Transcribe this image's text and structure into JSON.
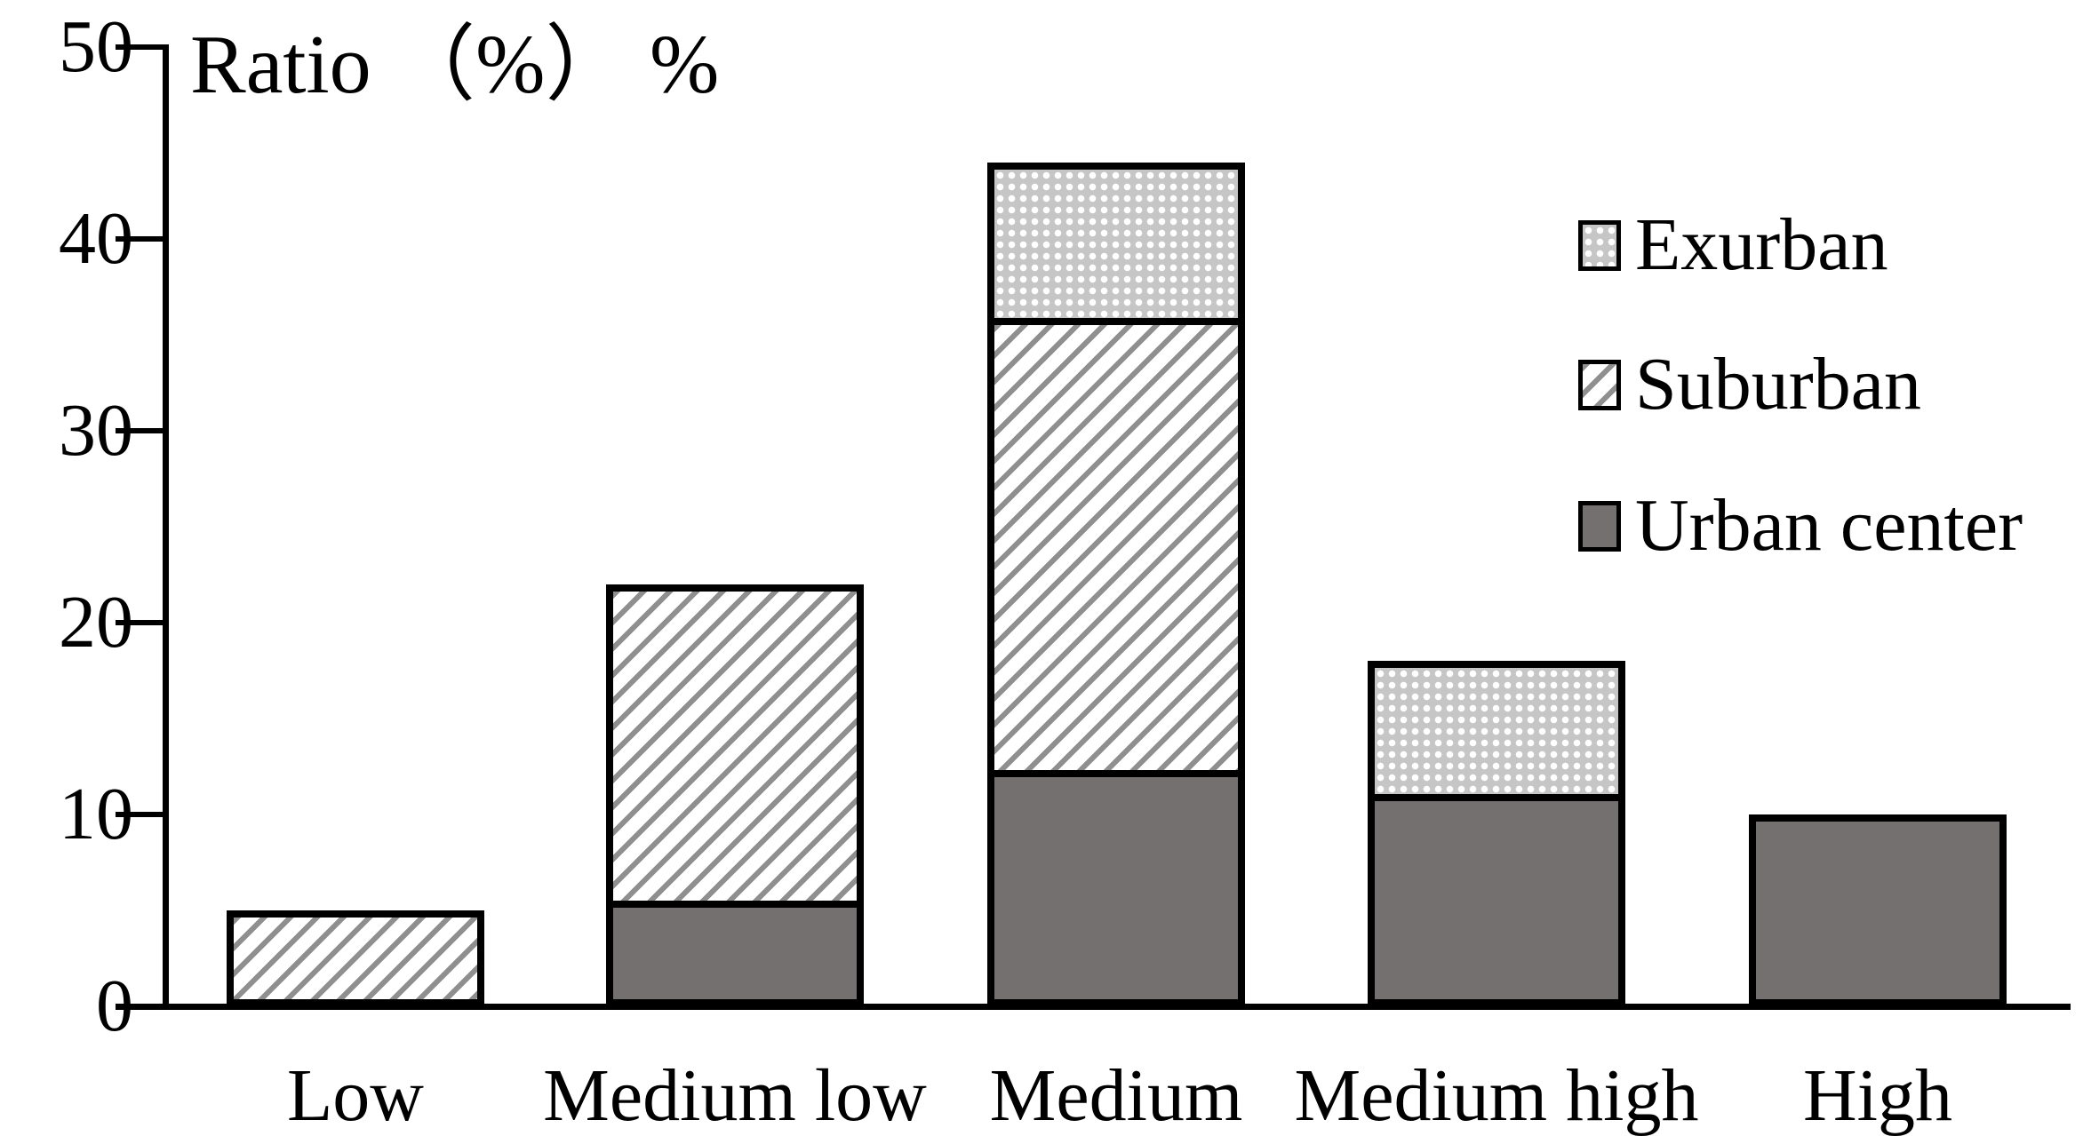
{
  "title": "Ratio （%） %",
  "legend": {
    "position": "upper right",
    "items": [
      {
        "label": "Exurban",
        "pattern": "dots"
      },
      {
        "label": "Suburban",
        "pattern": "hatch"
      },
      {
        "label": "Urban center",
        "pattern": "solid"
      }
    ]
  },
  "colors": {
    "urban_center_fill": "#747070",
    "suburban_hatch": "#8f8f8f",
    "exurban_dots_bg": "#c6c6c6",
    "axis": "#000000",
    "background": "#ffffff"
  },
  "chart_data": {
    "type": "bar",
    "stacked": true,
    "title": "Ratio （%） %",
    "xlabel": "",
    "ylabel": "Ratio (%)",
    "categories": [
      "Low",
      "Medium low",
      "Medium",
      "Medium high",
      "High"
    ],
    "series": [
      {
        "name": "Urban center",
        "pattern": "solid",
        "values": [
          0,
          5,
          12,
          11,
          10
        ]
      },
      {
        "name": "Suburban",
        "pattern": "hatch",
        "values": [
          5,
          17,
          24,
          0,
          0
        ]
      },
      {
        "name": "Exurban",
        "pattern": "dots",
        "values": [
          0,
          0,
          8,
          7,
          0
        ]
      }
    ],
    "totals": [
      5,
      22,
      44,
      18,
      10
    ],
    "ylim": [
      0,
      50
    ],
    "yticks": [
      "0",
      "10",
      "20",
      "30",
      "40",
      "50"
    ],
    "grid": false,
    "legend_position": "upper right"
  }
}
